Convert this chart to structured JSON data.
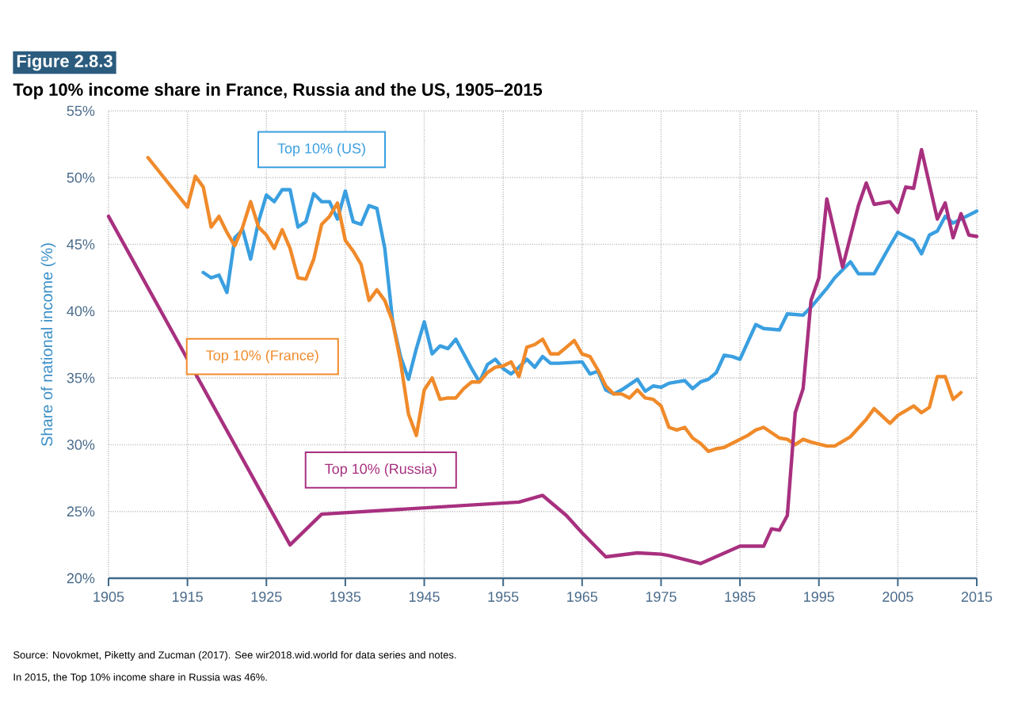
{
  "chart_data": {
    "type": "line",
    "title": "Figure 2.8.3",
    "subtitle": "Top 10% income share in France, Russia and the US, 1905–2015",
    "ylabel": "Share of national income (%)",
    "annotations": [
      "Source: Novokmet, Piketty and Zucman (2017). See wir2018.wid.world for data series and notes.",
      "In 2015, the Top 10% income share in Russia was 46%."
    ],
    "xlim": [
      1905,
      2015
    ],
    "xticks": [
      1905,
      1915,
      1925,
      1935,
      1945,
      1955,
      1965,
      1975,
      1985,
      1995,
      2005,
      2015
    ],
    "ylim": [
      20,
      55
    ],
    "yticks": [
      {
        "value": 20,
        "label": "20%"
      },
      {
        "value": 25,
        "label": "25%"
      },
      {
        "value": 30,
        "label": "30%"
      },
      {
        "value": 35,
        "label": "35%"
      },
      {
        "value": 40,
        "label": "40%"
      },
      {
        "value": 45,
        "label": "45%"
      },
      {
        "value": 50,
        "label": "50%"
      },
      {
        "value": 55,
        "label": "55%"
      }
    ],
    "grid": true,
    "marker": "none",
    "line_style": "solid",
    "series": [
      {
        "name": "Top 10% (US)",
        "color": "#3a9fe0",
        "x": [
          1917,
          1918,
          1919,
          1920,
          1921,
          1922,
          1923,
          1924,
          1925,
          1926,
          1927,
          1928,
          1929,
          1930,
          1931,
          1932,
          1933,
          1934,
          1935,
          1936,
          1937,
          1938,
          1939,
          1940,
          1941,
          1942,
          1943,
          1944,
          1945,
          1946,
          1947,
          1948,
          1949,
          1950,
          1951,
          1952,
          1953,
          1954,
          1955,
          1956,
          1957,
          1958,
          1959,
          1960,
          1961,
          1962,
          1965,
          1966,
          1967,
          1968,
          1969,
          1970,
          1971,
          1972,
          1973,
          1974,
          1975,
          1976,
          1977,
          1978,
          1979,
          1980,
          1981,
          1982,
          1983,
          1984,
          1985,
          1986,
          1987,
          1988,
          1990,
          1991,
          1993,
          1994,
          1996,
          1997,
          1999,
          2000,
          2002,
          2004,
          2005,
          2007,
          2008,
          2009,
          2010,
          2011,
          2012,
          2015
        ],
        "values": [
          42.9,
          42.5,
          42.7,
          41.4,
          45.5,
          46.1,
          43.9,
          46.7,
          48.7,
          48.2,
          49.1,
          49.1,
          46.3,
          46.7,
          48.8,
          48.2,
          48.2,
          46.9,
          49.0,
          46.7,
          46.5,
          47.9,
          47.7,
          44.7,
          39.2,
          36.6,
          34.9,
          37.2,
          39.2,
          36.8,
          37.4,
          37.2,
          37.9,
          36.8,
          35.7,
          34.7,
          36.0,
          36.4,
          35.7,
          35.3,
          35.8,
          36.4,
          35.8,
          36.6,
          36.1,
          36.1,
          36.2,
          35.3,
          35.5,
          34.1,
          33.8,
          34.1,
          34.5,
          34.9,
          34.0,
          34.4,
          34.3,
          34.6,
          34.7,
          34.8,
          34.2,
          34.7,
          34.9,
          35.4,
          36.7,
          36.6,
          36.4,
          37.7,
          39.0,
          38.7,
          38.6,
          39.8,
          39.7,
          40.3,
          41.7,
          42.5,
          43.7,
          42.8,
          42.8,
          44.9,
          45.9,
          45.3,
          44.3,
          45.7,
          46.0,
          47.1,
          46.6,
          47.5
        ]
      },
      {
        "name": "Top 10% (France)",
        "color": "#f08a2a",
        "x": [
          1910,
          1915,
          1916,
          1917,
          1918,
          1919,
          1920,
          1921,
          1922,
          1923,
          1924,
          1925,
          1926,
          1927,
          1928,
          1929,
          1930,
          1931,
          1932,
          1933,
          1934,
          1935,
          1936,
          1937,
          1938,
          1939,
          1940,
          1941,
          1942,
          1943,
          1944,
          1945,
          1946,
          1947,
          1948,
          1949,
          1950,
          1951,
          1952,
          1953,
          1954,
          1955,
          1956,
          1957,
          1958,
          1959,
          1960,
          1961,
          1962,
          1963,
          1964,
          1965,
          1966,
          1967,
          1968,
          1969,
          1970,
          1971,
          1972,
          1973,
          1974,
          1975,
          1976,
          1977,
          1978,
          1979,
          1980,
          1981,
          1982,
          1983,
          1984,
          1986,
          1987,
          1988,
          1989,
          1990,
          1991,
          1992,
          1993,
          1994,
          1996,
          1997,
          1999,
          2001,
          2002,
          2004,
          2005,
          2007,
          2008,
          2009,
          2010,
          2011,
          2012,
          2013
        ],
        "values": [
          51.5,
          47.8,
          50.1,
          49.3,
          46.3,
          47.1,
          45.9,
          44.9,
          46.3,
          48.2,
          46.3,
          45.7,
          44.7,
          46.1,
          44.7,
          42.5,
          42.4,
          43.9,
          46.5,
          47.1,
          48.1,
          45.3,
          44.5,
          43.5,
          40.8,
          41.6,
          40.8,
          39.2,
          36.2,
          32.3,
          30.7,
          34.1,
          35.0,
          33.4,
          33.5,
          33.5,
          34.2,
          34.7,
          34.7,
          35.4,
          35.8,
          35.9,
          36.2,
          35.1,
          37.3,
          37.5,
          37.9,
          36.8,
          36.8,
          37.3,
          37.8,
          36.8,
          36.6,
          35.6,
          34.4,
          33.8,
          33.8,
          33.5,
          34.1,
          33.5,
          33.4,
          32.9,
          31.3,
          31.1,
          31.3,
          30.5,
          30.1,
          29.5,
          29.7,
          29.8,
          30.1,
          30.7,
          31.1,
          31.3,
          30.9,
          30.5,
          30.4,
          30.0,
          30.4,
          30.2,
          29.9,
          29.9,
          30.6,
          31.9,
          32.7,
          31.6,
          32.2,
          32.9,
          32.4,
          32.8,
          35.1,
          35.1,
          33.4,
          33.9
        ]
      },
      {
        "name": "Top 10% (Russia)",
        "color": "#a8307f",
        "x": [
          1905,
          1928,
          1932,
          1957,
          1960,
          1963,
          1965,
          1968,
          1972,
          1975,
          1976,
          1980,
          1985,
          1988,
          1989,
          1990,
          1991,
          1992,
          1993,
          1994,
          1995,
          1996,
          1998,
          2000,
          2001,
          2002,
          2004,
          2005,
          2006,
          2007,
          2008,
          2010,
          2011,
          2012,
          2013,
          2014,
          2015
        ],
        "values": [
          47.1,
          22.5,
          24.8,
          25.7,
          26.2,
          24.7,
          23.4,
          21.6,
          21.9,
          21.8,
          21.7,
          21.1,
          22.4,
          22.4,
          23.7,
          23.6,
          24.7,
          32.4,
          34.2,
          40.8,
          42.5,
          48.4,
          43.3,
          47.9,
          49.6,
          48.0,
          48.2,
          47.4,
          49.3,
          49.2,
          52.1,
          46.9,
          48.1,
          45.5,
          47.3,
          45.7,
          45.6
        ]
      }
    ]
  }
}
